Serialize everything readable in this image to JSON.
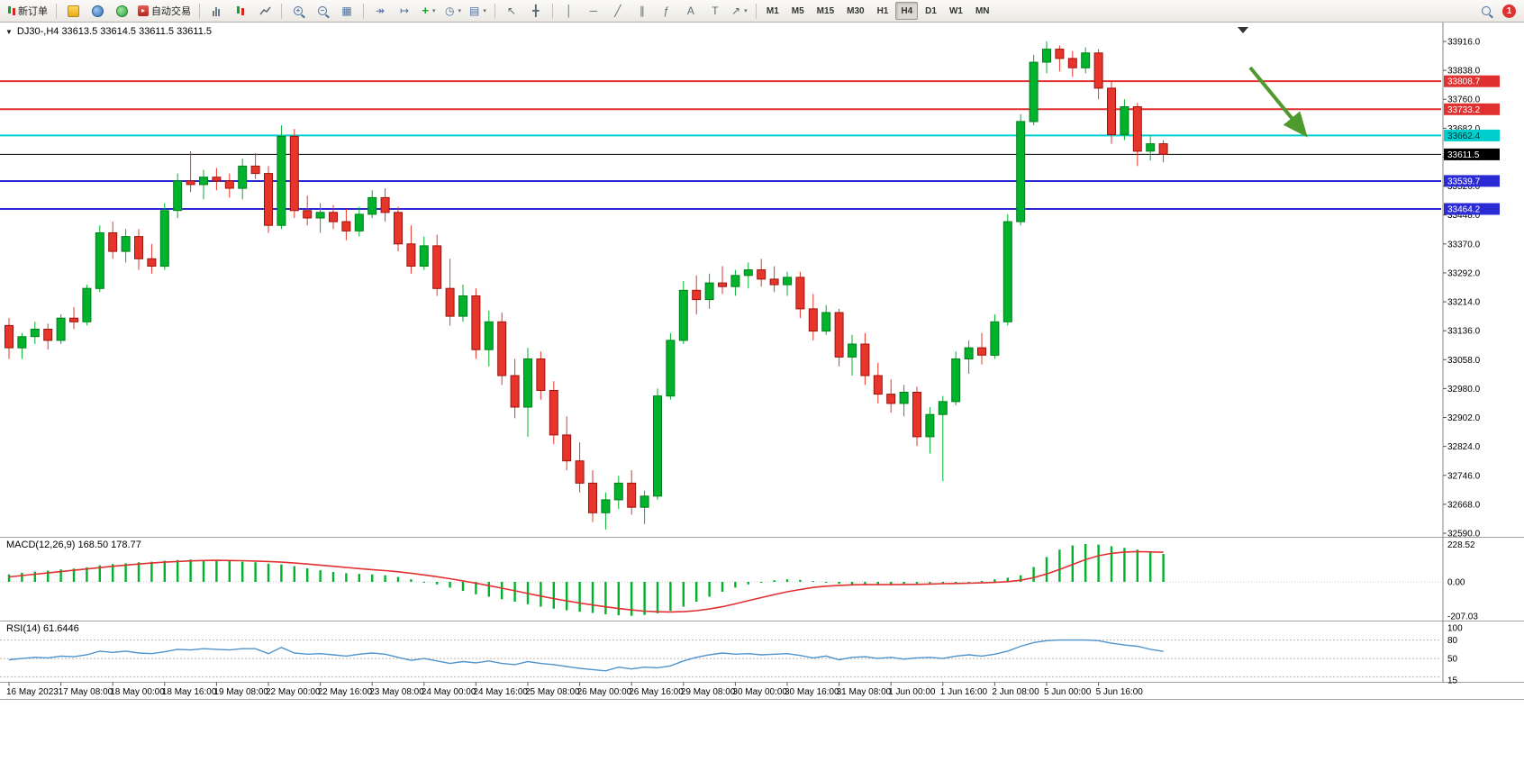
{
  "toolbar": {
    "new_order": "新订单",
    "autotrading": "自动交易",
    "timeframes": [
      "M1",
      "M5",
      "M15",
      "M30",
      "H1",
      "H4",
      "D1",
      "W1",
      "MN"
    ],
    "active_timeframe": "H4",
    "notification_badge": "1"
  },
  "chart": {
    "symbol_title": "DJ30-,H4 33613.5 33614.5 33611.5 33611.5",
    "colors": {
      "candle_up": "#00b22c",
      "candle_up_border": "#00801c",
      "candle_down": "#e8352b",
      "candle_down_border": "#9c140b",
      "macd_hist": "#00b22c",
      "macd_signal": "#e03131",
      "rsi_line": "#4f94cd",
      "arrow": "#4e9a2e",
      "axis_line": "#8a867f",
      "divider": "#a39f99"
    }
  },
  "chart_data": {
    "type": "candlestick",
    "symbol": "DJ30-",
    "timeframe": "H4",
    "current_ohlc": [
      33613.5,
      33614.5,
      33611.5,
      33611.5
    ],
    "price_axis": {
      "ticks": [
        33916.0,
        33838.0,
        33760.0,
        33682.0,
        33604.0,
        33526.0,
        33448.0,
        33370.0,
        33292.0,
        33214.0,
        33136.0,
        33058.0,
        32980.0,
        32902.0,
        32824.0,
        32746.0,
        32668.0,
        32590.0
      ]
    },
    "hlines": [
      {
        "price": 33808.7,
        "label": "33808.7",
        "color": "#e03131",
        "text_color": "#ffffff",
        "width": 2
      },
      {
        "price": 33733.2,
        "label": "33733.2",
        "color": "#e03131",
        "text_color": "#ffffff",
        "width": 2
      },
      {
        "price": 33662.4,
        "label": "33662.4",
        "color": "#00cdcd",
        "text_color": "#00332f",
        "width": 2
      },
      {
        "price": 33611.5,
        "label": "33611.5",
        "color": "#000000",
        "text_color": "#ffffff",
        "width": 1
      },
      {
        "price": 33539.7,
        "label": "33539.7",
        "color": "#2b2bd5",
        "text_color": "#ffffff",
        "width": 2
      },
      {
        "price": 33464.2,
        "label": "33464.2",
        "color": "#2b2bd5",
        "text_color": "#ffffff",
        "width": 2
      }
    ],
    "candles": [
      [
        33150,
        33170,
        33060,
        33090
      ],
      [
        33090,
        33130,
        33060,
        33120
      ],
      [
        33120,
        33160,
        33100,
        33140
      ],
      [
        33140,
        33155,
        33085,
        33110
      ],
      [
        33110,
        33180,
        33100,
        33170
      ],
      [
        33170,
        33200,
        33140,
        33160
      ],
      [
        33160,
        33260,
        33150,
        33250
      ],
      [
        33250,
        33420,
        33240,
        33400
      ],
      [
        33400,
        33430,
        33330,
        33350
      ],
      [
        33350,
        33410,
        33320,
        33390
      ],
      [
        33390,
        33410,
        33300,
        33330
      ],
      [
        33330,
        33370,
        33290,
        33310
      ],
      [
        33310,
        33480,
        33300,
        33460
      ],
      [
        33460,
        33560,
        33440,
        33540
      ],
      [
        33540,
        33620,
        33510,
        33530
      ],
      [
        33530,
        33570,
        33490,
        33550
      ],
      [
        33550,
        33575,
        33515,
        33540
      ],
      [
        33540,
        33560,
        33495,
        33520
      ],
      [
        33520,
        33600,
        33490,
        33580
      ],
      [
        33580,
        33615,
        33545,
        33560
      ],
      [
        33560,
        33580,
        33400,
        33420
      ],
      [
        33420,
        33690,
        33410,
        33660
      ],
      [
        33660,
        33680,
        33440,
        33460
      ],
      [
        33460,
        33500,
        33420,
        33440
      ],
      [
        33440,
        33480,
        33400,
        33455
      ],
      [
        33455,
        33475,
        33410,
        33430
      ],
      [
        33430,
        33465,
        33380,
        33405
      ],
      [
        33405,
        33470,
        33390,
        33450
      ],
      [
        33450,
        33515,
        33440,
        33495
      ],
      [
        33495,
        33520,
        33430,
        33455
      ],
      [
        33455,
        33470,
        33350,
        33370
      ],
      [
        33370,
        33420,
        33290,
        33310
      ],
      [
        33310,
        33390,
        33300,
        33365
      ],
      [
        33365,
        33395,
        33230,
        33250
      ],
      [
        33250,
        33330,
        33150,
        33175
      ],
      [
        33175,
        33260,
        33160,
        33230
      ],
      [
        33230,
        33250,
        33060,
        33085
      ],
      [
        33085,
        33190,
        33040,
        33160
      ],
      [
        33160,
        33185,
        32990,
        33015
      ],
      [
        33015,
        33060,
        32900,
        32930
      ],
      [
        32930,
        33090,
        32850,
        33060
      ],
      [
        33060,
        33080,
        32950,
        32975
      ],
      [
        32975,
        33000,
        32830,
        32855
      ],
      [
        32855,
        32905,
        32760,
        32785
      ],
      [
        32785,
        32835,
        32700,
        32725
      ],
      [
        32725,
        32760,
        32620,
        32645
      ],
      [
        32645,
        32700,
        32600,
        32680
      ],
      [
        32680,
        32745,
        32655,
        32725
      ],
      [
        32725,
        32760,
        32640,
        32660
      ],
      [
        32660,
        32705,
        32615,
        32690
      ],
      [
        32690,
        32980,
        32680,
        32960
      ],
      [
        32960,
        33130,
        32950,
        33110
      ],
      [
        33110,
        33270,
        33100,
        33245
      ],
      [
        33245,
        33285,
        33180,
        33220
      ],
      [
        33220,
        33290,
        33195,
        33265
      ],
      [
        33265,
        33310,
        33235,
        33255
      ],
      [
        33255,
        33300,
        33230,
        33285
      ],
      [
        33285,
        33320,
        33250,
        33300
      ],
      [
        33300,
        33330,
        33255,
        33275
      ],
      [
        33275,
        33310,
        33240,
        33260
      ],
      [
        33260,
        33295,
        33230,
        33280
      ],
      [
        33280,
        33295,
        33170,
        33195
      ],
      [
        33195,
        33235,
        33110,
        33135
      ],
      [
        33135,
        33205,
        33125,
        33185
      ],
      [
        33185,
        33195,
        33040,
        33065
      ],
      [
        33065,
        33125,
        33015,
        33100
      ],
      [
        33100,
        33130,
        32990,
        33015
      ],
      [
        33015,
        33050,
        32940,
        32965
      ],
      [
        32965,
        33005,
        32915,
        32940
      ],
      [
        32940,
        32990,
        32905,
        32970
      ],
      [
        32970,
        32985,
        32825,
        32850
      ],
      [
        32850,
        32930,
        32805,
        32910
      ],
      [
        32910,
        32960,
        32730,
        32945
      ],
      [
        32945,
        33080,
        32935,
        33060
      ],
      [
        33060,
        33110,
        33020,
        33090
      ],
      [
        33090,
        33130,
        33045,
        33070
      ],
      [
        33070,
        33180,
        33060,
        33160
      ],
      [
        33160,
        33450,
        33150,
        33430
      ],
      [
        33430,
        33720,
        33420,
        33700
      ],
      [
        33700,
        33880,
        33690,
        33860
      ],
      [
        33860,
        33916,
        33830,
        33895
      ],
      [
        33895,
        33905,
        33835,
        33870
      ],
      [
        33870,
        33890,
        33820,
        33845
      ],
      [
        33845,
        33900,
        33830,
        33885
      ],
      [
        33885,
        33895,
        33760,
        33790
      ],
      [
        33790,
        33810,
        33640,
        33665
      ],
      [
        33665,
        33760,
        33650,
        33740
      ],
      [
        33740,
        33750,
        33580,
        33620
      ],
      [
        33620,
        33660,
        33595,
        33640
      ],
      [
        33640,
        33650,
        33590,
        33611.5
      ]
    ],
    "dates": [
      "16 May 2023",
      "17 May 08:00",
      "18 May 00:00",
      "18 May 16:00",
      "19 May 08:00",
      "22 May 00:00",
      "22 May 16:00",
      "23 May 08:00",
      "24 May 00:00",
      "24 May 16:00",
      "25 May 08:00",
      "26 May 00:00",
      "26 May 16:00",
      "29 May 08:00",
      "30 May 00:00",
      "30 May 16:00",
      "31 May 08:00",
      "1 Jun 00:00",
      "1 Jun 16:00",
      "2 Jun 08:00",
      "5 Jun 00:00",
      "5 Jun 16:00"
    ],
    "date_label_every_n_candles": 4,
    "macd": {
      "label": "MACD(12,26,9) 168.50 178.77",
      "axis_labels": [
        "228.52",
        "0.00",
        "-207.03"
      ],
      "axis_values": [
        228.52,
        0.0,
        -207.03
      ],
      "histogram": [
        45,
        55,
        62,
        68,
        75,
        80,
        88,
        100,
        108,
        112,
        118,
        122,
        128,
        132,
        135,
        133,
        130,
        126,
        122,
        118,
        110,
        105,
        95,
        82,
        70,
        60,
        52,
        48,
        45,
        40,
        30,
        15,
        0,
        -15,
        -35,
        -55,
        -75,
        -90,
        -105,
        -120,
        -135,
        -150,
        -162,
        -172,
        -180,
        -188,
        -196,
        -202,
        -205,
        -200,
        -190,
        -175,
        -150,
        -120,
        -90,
        -60,
        -35,
        -15,
        0,
        10,
        15,
        12,
        5,
        -5,
        -12,
        -18,
        -20,
        -18,
        -15,
        -12,
        -10,
        -8,
        -12,
        -8,
        0,
        6,
        15,
        25,
        40,
        90,
        150,
        195,
        220,
        228.5,
        225,
        215,
        205,
        195,
        182,
        168.5
      ],
      "signal": [
        30,
        38,
        46,
        54,
        62,
        70,
        78,
        86,
        94,
        101,
        108,
        114,
        119,
        123,
        127,
        129,
        130,
        129,
        128,
        126,
        123,
        119,
        114,
        108,
        101,
        94,
        87,
        80,
        74,
        68,
        61,
        52,
        42,
        31,
        19,
        6,
        -8,
        -23,
        -38,
        -54,
        -70,
        -86,
        -101,
        -115,
        -128,
        -140,
        -151,
        -161,
        -170,
        -177,
        -181,
        -182,
        -180,
        -174,
        -164,
        -150,
        -133,
        -114,
        -95,
        -77,
        -60,
        -46,
        -34,
        -26,
        -21,
        -18,
        -17,
        -17,
        -17,
        -16,
        -15,
        -13,
        -11,
        -10,
        -8,
        -6,
        -3,
        1,
        10,
        25,
        48,
        75,
        105,
        135,
        158,
        172,
        180,
        183,
        181,
        178.8
      ]
    },
    "rsi": {
      "label": "RSI(14) 61.6446",
      "axis_labels": [
        "100",
        "80",
        "50",
        "15"
      ],
      "axis_values": [
        100,
        80,
        50,
        15
      ],
      "levels": [
        80,
        50,
        20
      ],
      "values": [
        48,
        50,
        52,
        51,
        54,
        53,
        56,
        62,
        60,
        62,
        59,
        58,
        61,
        65,
        64,
        66,
        65,
        64,
        66,
        66,
        58,
        68,
        59,
        57,
        58,
        56,
        54,
        57,
        59,
        57,
        52,
        47,
        50,
        46,
        42,
        45,
        43,
        46,
        42,
        40,
        45,
        42,
        40,
        37,
        34,
        32,
        30,
        36,
        33,
        36,
        35,
        38,
        46,
        52,
        56,
        59,
        57,
        58,
        56,
        57,
        58,
        55,
        51,
        54,
        48,
        52,
        53,
        50,
        52,
        49,
        51,
        52,
        50,
        54,
        56,
        54,
        57,
        62,
        70,
        76,
        79,
        80,
        80,
        80,
        79,
        75,
        72,
        70,
        65,
        61.6
      ]
    },
    "annotations": [
      {
        "type": "arrow",
        "direction": "down-right",
        "color": "#4e9a2e"
      }
    ]
  }
}
